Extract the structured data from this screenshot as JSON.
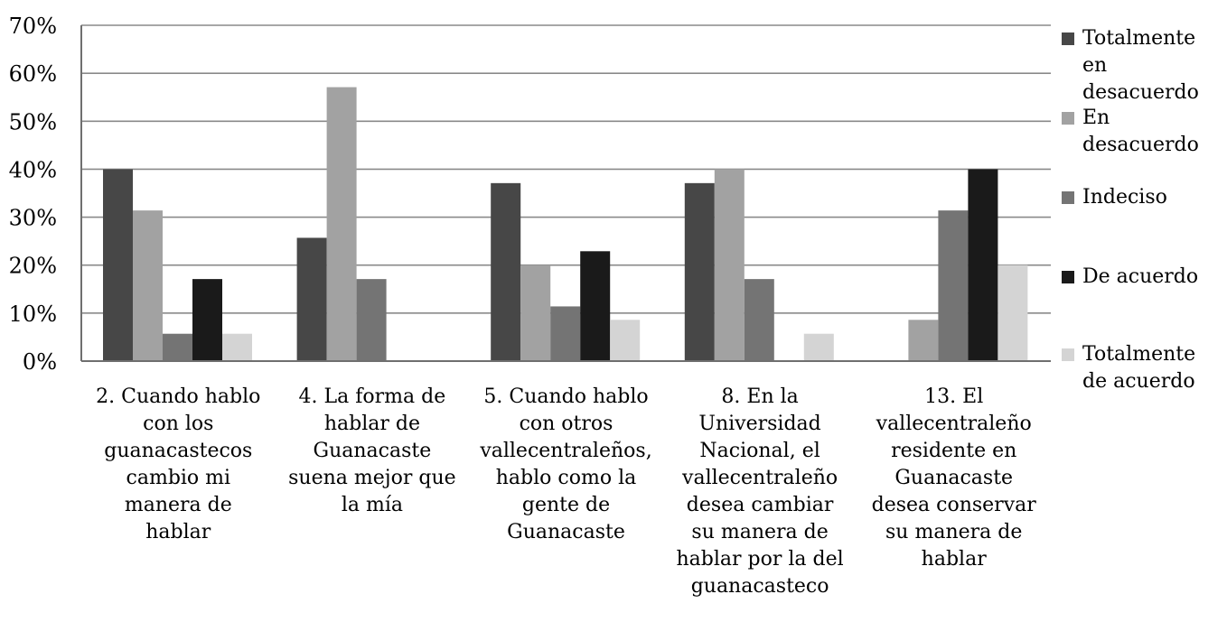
{
  "chart_data": {
    "type": "bar",
    "title": "",
    "xlabel": "",
    "ylabel": "",
    "ylim": [
      0,
      70
    ],
    "yticks": [
      "0%",
      "10%",
      "20%",
      "30%",
      "40%",
      "50%",
      "60%",
      "70%"
    ],
    "grid": true,
    "legend_position": "right",
    "categories": [
      [
        "2. Cuando hablo",
        "con los",
        "guanacastecos",
        "cambio mi",
        "manera de",
        "hablar"
      ],
      [
        "4. La forma de",
        "hablar de",
        "Guanacaste",
        "suena mejor que",
        "la mía"
      ],
      [
        "5. Cuando hablo",
        "con otros",
        "vallecentraleños,",
        "hablo como la",
        "gente de",
        "Guanacaste"
      ],
      [
        "8. En la",
        "Universidad",
        "Nacional, el",
        "vallecentraleño",
        "desea cambiar",
        "su manera de",
        "hablar por la del",
        "guanacasteco"
      ],
      [
        "13. El",
        "vallecentraleño",
        "residente en",
        "Guanacaste",
        "desea conservar",
        "su manera de",
        "hablar"
      ]
    ],
    "series": [
      {
        "name": [
          "Totalmente",
          "en",
          "desacuerdo"
        ],
        "color": "#474747",
        "values": [
          40,
          25.7,
          37.1,
          37.1,
          0
        ]
      },
      {
        "name": [
          "En",
          "desacuerdo"
        ],
        "color": "#a2a2a2",
        "values": [
          31.4,
          57.1,
          20,
          40,
          8.6
        ]
      },
      {
        "name": [
          "Indeciso"
        ],
        "color": "#747474",
        "values": [
          5.7,
          17.1,
          11.4,
          17.1,
          31.4
        ]
      },
      {
        "name": [
          "De acuerdo"
        ],
        "color": "#1a1a1a",
        "values": [
          17.1,
          0,
          22.9,
          0,
          40
        ]
      },
      {
        "name": [
          "Totalmente",
          "de acuerdo"
        ],
        "color": "#d4d4d4",
        "values": [
          5.7,
          0,
          8.6,
          5.7,
          20
        ]
      }
    ]
  }
}
